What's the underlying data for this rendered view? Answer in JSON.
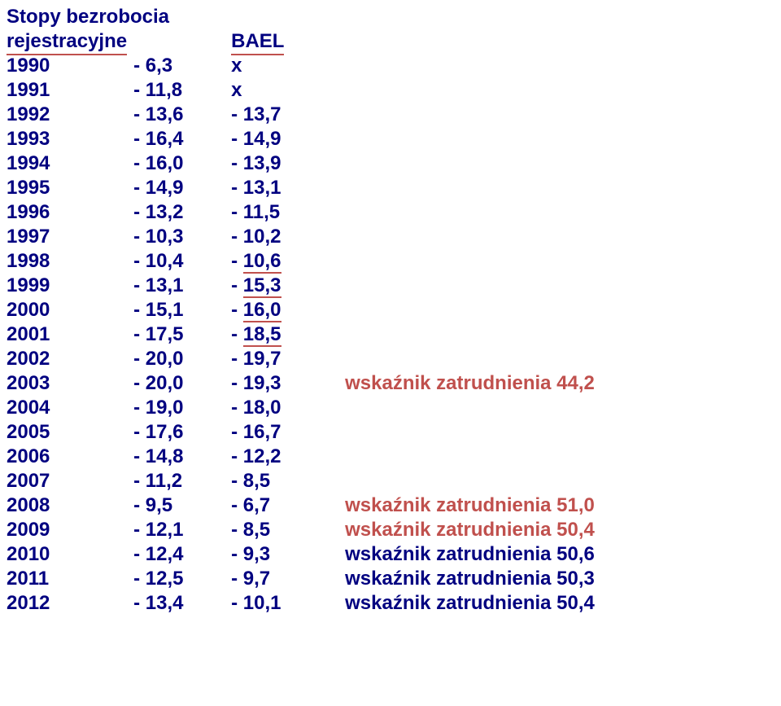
{
  "colors": {
    "navy": "#000080",
    "red": "#c0504d",
    "background": "#ffffff",
    "underline": "#c0504d"
  },
  "typography": {
    "font_family": "Arial",
    "font_size_pt": 18,
    "font_weight": "bold"
  },
  "header": {
    "title_line1": "Stopy bezrobocia",
    "title_line2": "rejestracyjne",
    "col3_label": "BAEL"
  },
  "rows": [
    {
      "year": "1990",
      "v1val": "6,3",
      "v2pre": "",
      "v2val": "x",
      "v2_underline": false,
      "note": "",
      "note_color": ""
    },
    {
      "year": "1991",
      "v1val": "11,8",
      "v2pre": "",
      "v2val": "x",
      "v2_underline": false,
      "note": "",
      "note_color": ""
    },
    {
      "year": "1992",
      "v1val": "13,6",
      "v2pre": "- ",
      "v2val": "13,7",
      "v2_underline": false,
      "note": "",
      "note_color": ""
    },
    {
      "year": "1993",
      "v1val": "16,4",
      "v2pre": "- ",
      "v2val": "14,9",
      "v2_underline": false,
      "note": "",
      "note_color": ""
    },
    {
      "year": "1994",
      "v1val": "16,0",
      "v2pre": "- ",
      "v2val": "13,9",
      "v2_underline": false,
      "note": "",
      "note_color": ""
    },
    {
      "year": "1995",
      "v1val": "14,9",
      "v2pre": "- ",
      "v2val": "13,1",
      "v2_underline": false,
      "note": "",
      "note_color": ""
    },
    {
      "year": "1996",
      "v1val": "13,2",
      "v2pre": "- ",
      "v2val": "11,5",
      "v2_underline": false,
      "note": "",
      "note_color": ""
    },
    {
      "year": "1997",
      "v1val": "10,3",
      "v2pre": "- ",
      "v2val": "10,2",
      "v2_underline": false,
      "note": "",
      "note_color": ""
    },
    {
      "year": "1998",
      "v1val": "10,4",
      "v2pre": "- ",
      "v2val": "10,6",
      "v2_underline": true,
      "note": "",
      "note_color": ""
    },
    {
      "year": "1999",
      "v1val": "13,1",
      "v2pre": "- ",
      "v2val": "15,3",
      "v2_underline": true,
      "note": "",
      "note_color": ""
    },
    {
      "year": "2000",
      "v1val": "15,1",
      "v2pre": "- ",
      "v2val": "16,0",
      "v2_underline": true,
      "note": "",
      "note_color": ""
    },
    {
      "year": "2001",
      "v1val": "17,5",
      "v2pre": "- ",
      "v2val": "18,5",
      "v2_underline": true,
      "note": "",
      "note_color": ""
    },
    {
      "year": "2002",
      "v1val": "20,0",
      "v2pre": "- ",
      "v2val": "19,7",
      "v2_underline": false,
      "note": "",
      "note_color": ""
    },
    {
      "year": "2003",
      "v1val": "20,0",
      "v2pre": "- ",
      "v2val": "19,3",
      "v2_underline": false,
      "note": "wskaźnik zatrudnienia 44,2",
      "note_color": "red"
    },
    {
      "year": "2004",
      "v1val": "19,0",
      "v2pre": "- ",
      "v2val": "18,0",
      "v2_underline": false,
      "note": "",
      "note_color": ""
    },
    {
      "year": "2005",
      "v1val": "17,6",
      "v2pre": "- ",
      "v2val": "16,7",
      "v2_underline": false,
      "note": "",
      "note_color": ""
    },
    {
      "year": "2006",
      "v1val": "14,8",
      "v2pre": "- ",
      "v2val": "12,2",
      "v2_underline": false,
      "note": "",
      "note_color": ""
    },
    {
      "year": "2007",
      "v1val": "11,2",
      "v2pre": "-   ",
      "v2val": "8,5",
      "v2_underline": false,
      "note": "",
      "note_color": ""
    },
    {
      "year": "2008",
      "v1val": "9,5",
      "v2pre": "-   ",
      "v2val": "6,7",
      "v2_underline": false,
      "note": "wskaźnik zatrudnienia 51,0",
      "note_color": "red"
    },
    {
      "year": "2009",
      "v1val": "12,1",
      "v2pre": "-   ",
      "v2val": "8,5",
      "v2_underline": false,
      "note": "wskaźnik zatrudnienia 50,4",
      "note_color": "red"
    },
    {
      "year": "2010",
      "v1val": "12,4",
      "v2pre": "-   ",
      "v2val": "9,3",
      "v2_underline": false,
      "note": "wskaźnik zatrudnienia 50,6",
      "note_color": "navy"
    },
    {
      "year": "2011",
      "v1val": "12,5",
      "v2pre": "-   ",
      "v2val": "9,7",
      "v2_underline": false,
      "note": "wskaźnik zatrudnienia 50,3",
      "note_color": "navy"
    },
    {
      "year": "2012",
      "v1val": "13,4",
      "v2pre": "- ",
      "v2val": "10,1",
      "v2_underline": false,
      "note": "wskaźnik zatrudnienia 50,4",
      "note_color": "navy"
    }
  ],
  "v1_prefix": "- "
}
